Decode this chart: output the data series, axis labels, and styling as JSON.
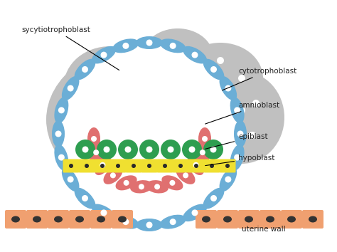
{
  "bg_color": "#ffffff",
  "syncytio_color": "#c0c0c0",
  "cytotro_color": "#6baed6",
  "amnioblast_color": "#e07070",
  "epiblast_color": "#2e9e50",
  "hypoblast_color": "#f0e030",
  "uterine_color": "#f0a070",
  "labels": {
    "syncytio": "sycytiotrophoblast",
    "cytotro": "cytotrophoblast",
    "amnioblast": "amnioblast",
    "epiblast": "epiblast",
    "hypoblast": "hypoblast",
    "uterine": "uterine wall"
  },
  "fig_width": 4.74,
  "fig_height": 3.54,
  "dpi": 100
}
